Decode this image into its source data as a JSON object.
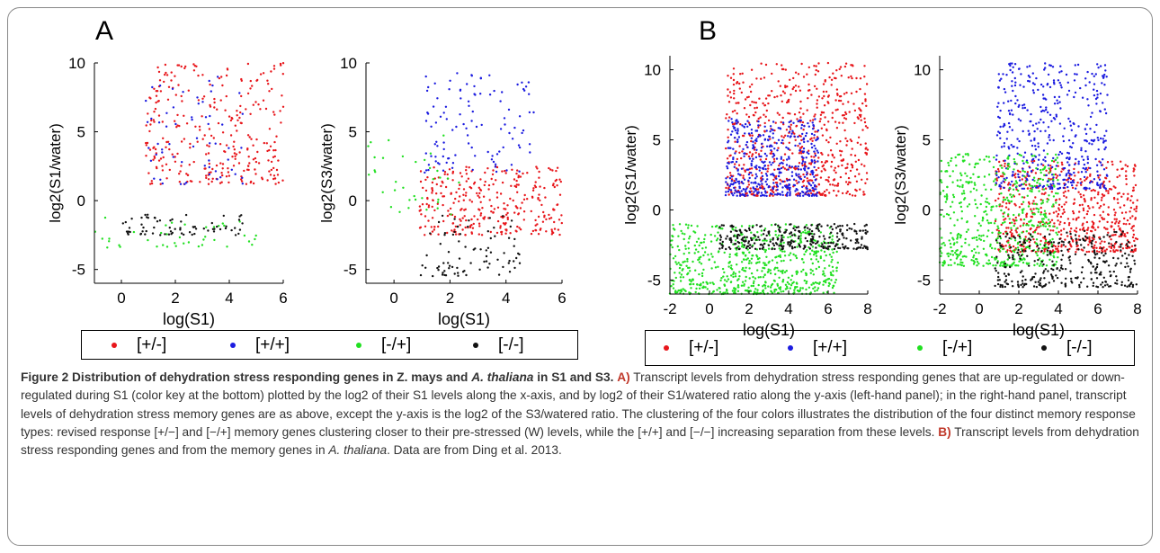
{
  "panel_letters": [
    "A",
    "B"
  ],
  "chart_data": [
    {
      "type": "scatter",
      "panel": "A",
      "xlabel": "log(S1)",
      "ylabel": "log2(S1/water)",
      "xlim": [
        -1,
        6
      ],
      "ylim": [
        -6,
        10
      ],
      "xticks": [
        0,
        2,
        4,
        6
      ],
      "yticks": [
        -5,
        0,
        5,
        10
      ],
      "series": [
        {
          "name": "[+/-]",
          "color": "#e8161b",
          "n": 300,
          "x_range": [
            0.9,
            6.0
          ],
          "y_range": [
            1.2,
            10.0
          ]
        },
        {
          "name": "[+/+]",
          "color": "#1c1ce0",
          "n": 60,
          "x_range": [
            0.9,
            4.5
          ],
          "y_range": [
            1.2,
            9.0
          ]
        },
        {
          "name": "[-/+]",
          "color": "#21e021",
          "n": 40,
          "x_range": [
            -1.0,
            5.0
          ],
          "y_range": [
            -3.5,
            -1.2
          ]
        },
        {
          "name": "[-/-]",
          "color": "#111111",
          "n": 70,
          "x_range": [
            0.0,
            4.5
          ],
          "y_range": [
            -2.5,
            -1.0
          ]
        }
      ]
    },
    {
      "type": "scatter",
      "panel": "A",
      "xlabel": "log(S1)",
      "ylabel": "log2(S3/water)",
      "xlim": [
        -1,
        6
      ],
      "ylim": [
        -6,
        10
      ],
      "xticks": [
        0,
        2,
        4,
        6
      ],
      "yticks": [
        -5,
        0,
        5,
        10
      ],
      "series": [
        {
          "name": "[+/-]",
          "color": "#e8161b",
          "n": 320,
          "x_range": [
            0.9,
            6.0
          ],
          "y_range": [
            -2.5,
            2.5
          ]
        },
        {
          "name": "[+/+]",
          "color": "#1c1ce0",
          "n": 110,
          "x_range": [
            1.0,
            5.0
          ],
          "y_range": [
            2.0,
            9.5
          ]
        },
        {
          "name": "[-/+]",
          "color": "#21e021",
          "n": 35,
          "x_range": [
            -1.0,
            2.5
          ],
          "y_range": [
            -1.0,
            5.0
          ]
        },
        {
          "name": "[-/-]",
          "color": "#111111",
          "n": 80,
          "x_range": [
            0.9,
            4.5
          ],
          "y_range": [
            -5.5,
            -1.0
          ]
        }
      ]
    },
    {
      "type": "scatter",
      "panel": "B",
      "xlabel": "log(S1)",
      "ylabel": "log2(S1/water)",
      "xlim": [
        -2,
        8
      ],
      "ylim": [
        -6,
        11
      ],
      "xticks": [
        -2,
        0,
        2,
        4,
        6,
        8
      ],
      "yticks": [
        -5,
        0,
        5,
        10
      ],
      "series": [
        {
          "name": "[+/-]",
          "color": "#e8161b",
          "n": 650,
          "x_range": [
            0.8,
            8.0
          ],
          "y_range": [
            1.0,
            10.5
          ]
        },
        {
          "name": "[+/+]",
          "color": "#1c1ce0",
          "n": 450,
          "x_range": [
            0.8,
            5.5
          ],
          "y_range": [
            1.0,
            6.5
          ]
        },
        {
          "name": "[-/+]",
          "color": "#21e021",
          "n": 650,
          "x_range": [
            -2.0,
            6.5
          ],
          "y_range": [
            -6.0,
            -1.0
          ]
        },
        {
          "name": "[-/-]",
          "color": "#111111",
          "n": 300,
          "x_range": [
            0.5,
            8.0
          ],
          "y_range": [
            -2.8,
            -1.0
          ]
        }
      ]
    },
    {
      "type": "scatter",
      "panel": "B",
      "xlabel": "log(S1)",
      "ylabel": "log2(S3/water)",
      "xlim": [
        -2,
        8
      ],
      "ylim": [
        -6,
        11
      ],
      "xticks": [
        -2,
        0,
        2,
        4,
        6,
        8
      ],
      "yticks": [
        -5,
        0,
        5,
        10
      ],
      "series": [
        {
          "name": "[+/-]",
          "color": "#e8161b",
          "n": 650,
          "x_range": [
            0.8,
            8.0
          ],
          "y_range": [
            -3.0,
            3.5
          ]
        },
        {
          "name": "[+/+]",
          "color": "#1c1ce0",
          "n": 450,
          "x_range": [
            0.8,
            6.5
          ],
          "y_range": [
            1.5,
            10.5
          ]
        },
        {
          "name": "[-/+]",
          "color": "#21e021",
          "n": 550,
          "x_range": [
            -2.0,
            4.0
          ],
          "y_range": [
            -4.0,
            4.0
          ]
        },
        {
          "name": "[-/-]",
          "color": "#111111",
          "n": 320,
          "x_range": [
            0.8,
            8.0
          ],
          "y_range": [
            -5.5,
            -1.5
          ]
        }
      ]
    }
  ],
  "legend": {
    "entries": [
      {
        "label": "[+/-]",
        "color": "#e8161b"
      },
      {
        "label": "[+/+]",
        "color": "#1c1ce0"
      },
      {
        "label": "[-/+]",
        "color": "#21e021"
      },
      {
        "label": "[-/-]",
        "color": "#111111"
      }
    ]
  },
  "caption": {
    "title": "Figure 2 Distribution of dehydration stress responding genes in Z. mays and ",
    "title_italic": "A. thaliana",
    "title_end": " in S1 and S3.",
    "label_a": "A)",
    "text_a": " Transcript levels from dehydration stress responding genes that are up-regulated or down-regulated during S1 (color key at the bottom) plotted by the log2 of their S1 levels along the x-axis, and by log2 of their S1/watered ratio along the y-axis (left-hand panel); in the right-hand panel, transcript levels of dehydration stress memory genes are as above, except the y-axis is the log2 of the S3/watered ratio. The clustering of the four colors illustrates the distribution of the four distinct memory response types: revised response [+/−] and [−/+] memory genes clustering closer to their pre-stressed (W) levels, while the [+/+] and [−/−] increasing separation from these levels.",
    "label_b": "B)",
    "text_b": " Transcript levels from dehydration stress responding genes and from the memory genes in ",
    "text_b_italic": "A. thaliana",
    "text_b_end": ". Data are from Ding et al. 2013."
  }
}
